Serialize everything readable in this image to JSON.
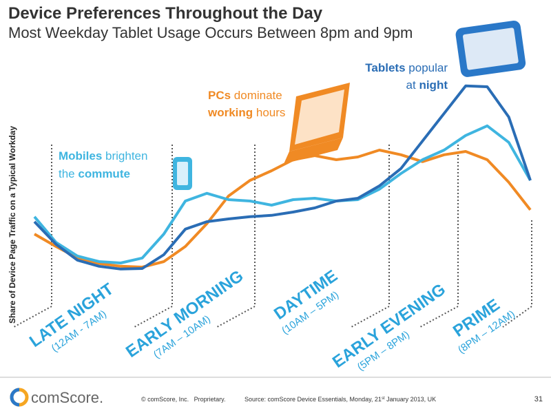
{
  "chart_data": {
    "type": "line",
    "title": "Device Preferences Throughout the Day",
    "subtitle": "Most Weekday Tablet Usage Occurs Between 8pm and 9pm",
    "y_label": "Share of Device Page Traffic on a Typical Workday",
    "ylim": [
      0,
      100
    ],
    "series": [
      {
        "name": "Tablets",
        "color": "#2a6db5",
        "values": [
          29.5,
          21.3,
          15.5,
          13.3,
          12.3,
          12.5,
          17.5,
          26.8,
          29.5,
          30.5,
          31.3,
          31.8,
          33,
          34.5,
          37,
          38,
          42.5,
          48.8,
          58.8,
          68.8,
          78.8,
          78.5,
          67.5,
          44.5
        ]
      },
      {
        "name": "Mobiles",
        "color": "#3fb5e0",
        "values": [
          31.3,
          22,
          17,
          15,
          14.5,
          16.3,
          25,
          37,
          39.8,
          37.5,
          37,
          35.5,
          37.5,
          38,
          37,
          37.5,
          41.3,
          47,
          52,
          55.5,
          60.8,
          64.3,
          58.3,
          44.5
        ]
      },
      {
        "name": "PCs",
        "color": "#f08a24",
        "values": [
          25,
          20.5,
          16.3,
          14.3,
          13.3,
          13,
          15,
          20.5,
          28.8,
          38.8,
          44.5,
          48,
          52,
          53.5,
          52,
          53,
          55.5,
          53.8,
          51.3,
          53.8,
          55,
          52,
          43.8,
          33.8
        ]
      }
    ],
    "dayparts": [
      {
        "name": "LATE NIGHT",
        "hours": "(12AM - 7AM)"
      },
      {
        "name": "EARLY MORNING",
        "hours": "(7AM – 10AM)"
      },
      {
        "name": "DAYTIME",
        "hours": "(10AM – 5PM)"
      },
      {
        "name": "EARLY EVENING",
        "hours": "(5PM – 8PM)"
      },
      {
        "name": "PRIME",
        "hours": "(8PM – 12AM)"
      }
    ],
    "annotations": {
      "mobiles": [
        "Mobiles",
        " brighten",
        "the ",
        "commute"
      ],
      "pcs": [
        "PCs",
        " dominate",
        "working",
        " hours"
      ],
      "tablets": [
        "Tablets",
        " popular",
        "at ",
        "night"
      ]
    }
  },
  "footer": {
    "brand": "comScore.",
    "copyright": "© comScore, Inc.   Proprietary.",
    "source": [
      "Source: comScore Device Essentials, Monday, 21",
      "st",
      " January 2013, UK"
    ],
    "page": "31"
  }
}
